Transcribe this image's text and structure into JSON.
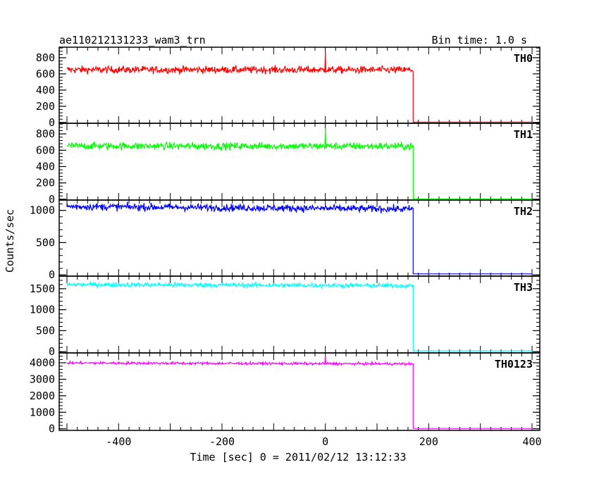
{
  "chart_data": {
    "type": "line",
    "title": "ae110212131233_wam3_trn",
    "subtitle": "Bin time: 1.0 s",
    "xlabel": "Time [sec] 0 = 2011/02/12 13:12:33",
    "ylabel": "Counts/sec",
    "xlim": [
      -515,
      415
    ],
    "xticks": [
      -400,
      -200,
      0,
      200,
      400
    ],
    "drop_time": 170,
    "spike_time": 0,
    "series": [
      {
        "name": "TH0",
        "color": "#ff0000",
        "ylim": [
          -10,
          930
        ],
        "yticks": [
          0,
          200,
          400,
          600,
          800
        ],
        "level": 650,
        "noise": 32,
        "trend": 5,
        "after": 5,
        "spike": 870
      },
      {
        "name": "TH1",
        "color": "#00ff00",
        "ylim": [
          -10,
          930
        ],
        "yticks": [
          0,
          200,
          400,
          600,
          800
        ],
        "level": 650,
        "noise": 32,
        "trend": 5,
        "after": 5,
        "spike": 870
      },
      {
        "name": "TH2",
        "color": "#0000ff",
        "ylim": [
          -20,
          1160
        ],
        "yticks": [
          0,
          500,
          1000
        ],
        "level": 1030,
        "noise": 40,
        "trend": 60,
        "after": 15,
        "spike": 1060
      },
      {
        "name": "TH3",
        "color": "#00ffff",
        "ylim": [
          -30,
          1800
        ],
        "yticks": [
          0,
          500,
          1000,
          1500
        ],
        "level": 1580,
        "noise": 40,
        "trend": 40,
        "after": 20,
        "spike": 1620
      },
      {
        "name": "TH0123",
        "color": "#ff00ff",
        "ylim": [
          -100,
          4600
        ],
        "yticks": [
          0,
          1000,
          2000,
          3000,
          4000
        ],
        "level": 3950,
        "noise": 55,
        "trend": 80,
        "after": 20,
        "spike": 4450
      }
    ]
  }
}
